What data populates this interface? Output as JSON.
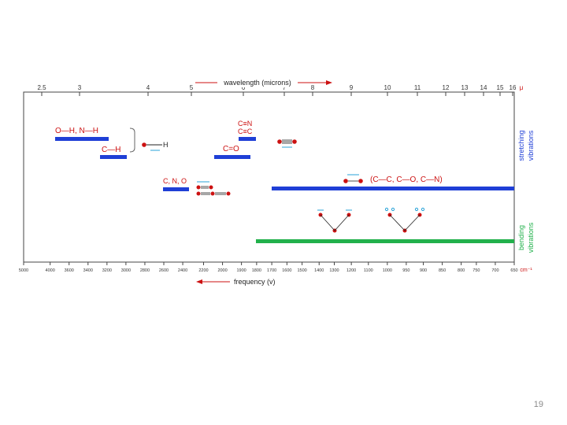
{
  "slide_number": "19",
  "colors": {
    "stretch": "#1f3fd6",
    "bend": "#22b14c",
    "atom": "#cc1111",
    "arrow": "#2aa3d8",
    "label_red": "#cc1111",
    "axis": "#444444"
  },
  "chart_data": {
    "type": "ir-correlation-chart",
    "top_axis": {
      "label": "wavelength (microns)",
      "ticks": [
        "2.5",
        "3",
        "4",
        "5",
        "6",
        "7",
        "8",
        "9",
        "10",
        "11",
        "12",
        "13",
        "14",
        "15",
        "16"
      ],
      "unit": "μ"
    },
    "bottom_axis": {
      "label": "frequency (v)",
      "ticks": [
        "5000",
        "4000",
        "3600",
        "3400",
        "3200",
        "3000",
        "2800",
        "2600",
        "2400",
        "2200",
        "2000",
        "1900",
        "1800",
        "1700",
        "1600",
        "1500",
        "1400",
        "1300",
        "1200",
        "1100",
        "1000",
        "950",
        "900",
        "850",
        "800",
        "750",
        "700",
        "650"
      ],
      "unit": "cm⁻¹"
    },
    "groups": {
      "stretching": "stretching vibrations",
      "bending": "bending vibrations"
    },
    "bands": [
      {
        "label": "O—H, N—H",
        "group": "stretching",
        "range_cm": [
          3600,
          3200
        ]
      },
      {
        "label": "C—H",
        "group": "stretching",
        "range_cm": [
          3300,
          2700
        ]
      },
      {
        "label": "C≡N / C≡C",
        "group": "stretching",
        "range_cm": [
          2260,
          2100
        ]
      },
      {
        "label": "C=O",
        "group": "stretching",
        "range_cm": [
          1800,
          1650
        ]
      },
      {
        "label": "C, N, O (cumulated C=C=C)",
        "group": "stretching",
        "range_cm": [
          2300,
          2050
        ]
      },
      {
        "label": "C—C, C—O, C—N",
        "group": "stretching",
        "range_cm": [
          1480,
          650
        ]
      },
      {
        "label": "bending",
        "group": "bending",
        "range_cm": [
          1650,
          650
        ]
      }
    ],
    "labels": {
      "oh_nh": "O—H, N—H",
      "ch": "C—H",
      "cn": "C≡N",
      "cc_triple": "C≡C",
      "co": "C=O",
      "cno": "C, N, O",
      "single_bonds": "(C—C, C—O, C—N)",
      "h_atom": "H"
    }
  }
}
